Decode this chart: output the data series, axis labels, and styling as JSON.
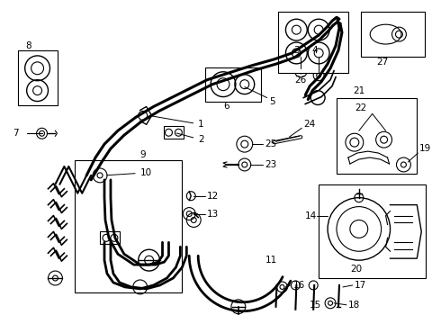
{
  "bg_color": "#ffffff",
  "fig_width": 4.9,
  "fig_height": 3.6,
  "dpi": 100,
  "line_color": "#000000",
  "text_color": "#000000"
}
